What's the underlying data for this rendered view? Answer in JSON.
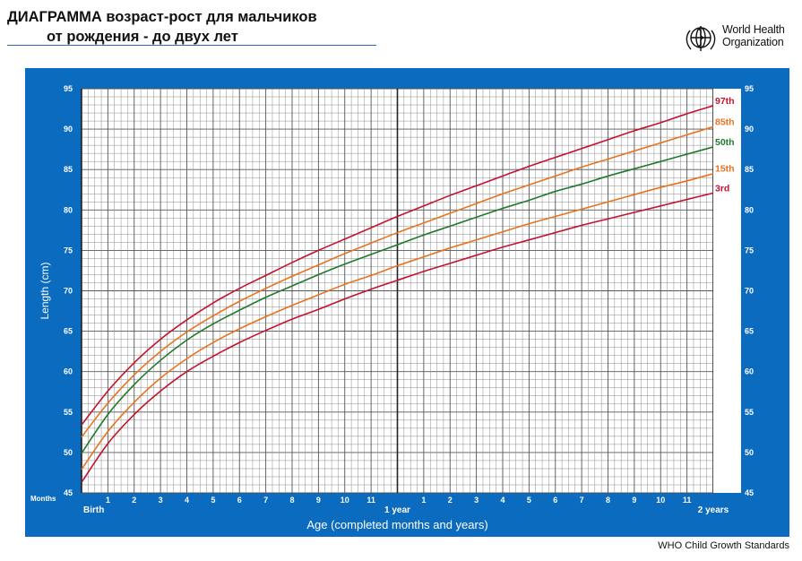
{
  "header": {
    "title_line1": "ДИАГРАММА возраст-рост для мальчиков",
    "title_line2": "от рождения - до двух лет"
  },
  "logo": {
    "line1": "World Health",
    "line2": "Organization"
  },
  "footer": {
    "text": "WHO Child Growth Standards"
  },
  "colors": {
    "panel": "#0a6bbf",
    "grid": "#8c8c8c",
    "p97": "#c4122f",
    "p85": "#e8731e",
    "p50": "#1f7a2e",
    "p15": "#e8731e",
    "p3": "#c4122f"
  },
  "chart_data": {
    "type": "line",
    "title": "",
    "xlabel": "Age (completed months and years)",
    "ylabel": "Length (cm)",
    "x_unit_label": "Months",
    "xlim": [
      0,
      24
    ],
    "ylim": [
      45,
      95
    ],
    "grid": true,
    "x_ticks": [
      {
        "value": 0,
        "label": "Birth"
      },
      {
        "value": 1,
        "label": "1"
      },
      {
        "value": 2,
        "label": "2"
      },
      {
        "value": 3,
        "label": "3"
      },
      {
        "value": 4,
        "label": "4"
      },
      {
        "value": 5,
        "label": "5"
      },
      {
        "value": 6,
        "label": "6"
      },
      {
        "value": 7,
        "label": "7"
      },
      {
        "value": 8,
        "label": "8"
      },
      {
        "value": 9,
        "label": "9"
      },
      {
        "value": 10,
        "label": "10"
      },
      {
        "value": 11,
        "label": "11"
      },
      {
        "value": 12,
        "label": "1 year"
      },
      {
        "value": 13,
        "label": "1"
      },
      {
        "value": 14,
        "label": "2"
      },
      {
        "value": 15,
        "label": "3"
      },
      {
        "value": 16,
        "label": "4"
      },
      {
        "value": 17,
        "label": "5"
      },
      {
        "value": 18,
        "label": "6"
      },
      {
        "value": 19,
        "label": "7"
      },
      {
        "value": 20,
        "label": "8"
      },
      {
        "value": 21,
        "label": "9"
      },
      {
        "value": 22,
        "label": "10"
      },
      {
        "value": 23,
        "label": "11"
      },
      {
        "value": 24,
        "label": "2 years"
      }
    ],
    "y_ticks": [
      "45",
      "50",
      "55",
      "60",
      "65",
      "70",
      "75",
      "80",
      "85",
      "90",
      "95"
    ],
    "x": [
      0,
      1,
      2,
      3,
      4,
      5,
      6,
      7,
      8,
      9,
      10,
      11,
      12,
      13,
      14,
      15,
      16,
      17,
      18,
      19,
      20,
      21,
      22,
      23,
      24
    ],
    "series": [
      {
        "name": "97th",
        "color_key": "p97",
        "values": [
          53.4,
          57.6,
          61.1,
          64.0,
          66.4,
          68.5,
          70.3,
          71.9,
          73.5,
          75.0,
          76.4,
          77.8,
          79.2,
          80.5,
          81.8,
          83.0,
          84.2,
          85.4,
          86.5,
          87.6,
          88.7,
          89.8,
          90.8,
          91.9,
          92.9
        ]
      },
      {
        "name": "85th",
        "color_key": "p85",
        "values": [
          51.9,
          56.1,
          59.6,
          62.5,
          64.9,
          66.9,
          68.7,
          70.3,
          71.8,
          73.2,
          74.6,
          75.9,
          77.2,
          78.4,
          79.6,
          80.8,
          82.0,
          83.1,
          84.2,
          85.3,
          86.3,
          87.3,
          88.3,
          89.3,
          90.3
        ]
      },
      {
        "name": "50th",
        "color_key": "p50",
        "values": [
          49.9,
          54.7,
          58.4,
          61.4,
          63.9,
          65.9,
          67.6,
          69.2,
          70.6,
          72.0,
          73.3,
          74.5,
          75.7,
          76.9,
          78.0,
          79.1,
          80.2,
          81.2,
          82.3,
          83.2,
          84.2,
          85.1,
          86.0,
          86.9,
          87.8
        ]
      },
      {
        "name": "15th",
        "color_key": "p15",
        "values": [
          47.9,
          52.6,
          56.2,
          59.2,
          61.6,
          63.6,
          65.3,
          66.8,
          68.2,
          69.5,
          70.8,
          71.9,
          73.1,
          74.2,
          75.3,
          76.3,
          77.3,
          78.3,
          79.2,
          80.1,
          81.0,
          81.9,
          82.8,
          83.6,
          84.5
        ]
      },
      {
        "name": "3rd",
        "color_key": "p3",
        "values": [
          46.3,
          51.1,
          54.7,
          57.6,
          60.0,
          61.9,
          63.6,
          65.1,
          66.5,
          67.7,
          69.0,
          70.2,
          71.3,
          72.4,
          73.4,
          74.4,
          75.4,
          76.3,
          77.2,
          78.1,
          78.9,
          79.7,
          80.5,
          81.3,
          82.1
        ]
      }
    ]
  }
}
